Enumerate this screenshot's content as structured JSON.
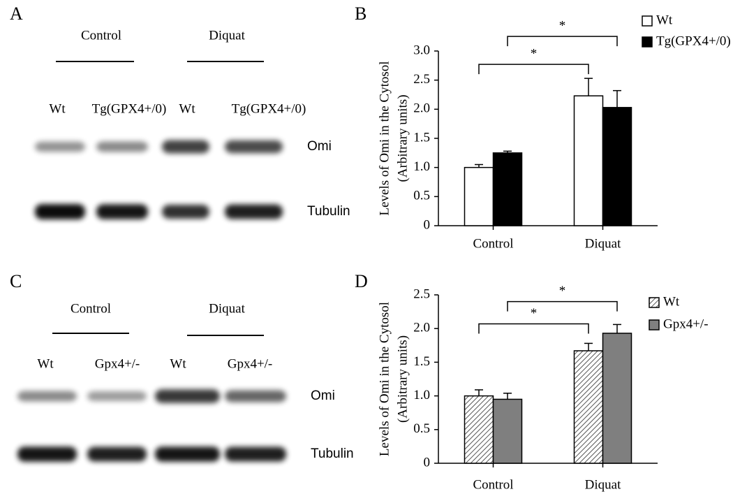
{
  "blots": [
    {
      "panel": "A",
      "groups": [
        "Control",
        "Diquat"
      ],
      "lanes": [
        "Wt",
        "Tg(GPX4+/0)",
        "Wt",
        "Tg(GPX4+/0)"
      ],
      "bands": [
        "Omi",
        "Tubulin"
      ]
    },
    {
      "panel": "C",
      "groups": [
        "Control",
        "Diquat"
      ],
      "lanes": [
        "Wt",
        "Gpx4+/-",
        "Wt",
        "Gpx4+/-"
      ],
      "bands": [
        "Omi",
        "Tubulin"
      ]
    }
  ],
  "chart_data": [
    {
      "type": "bar",
      "panel": "B",
      "y_label": [
        "Levels of Omi in the Cytosol",
        "(Arbitrary units)"
      ],
      "categories": [
        "Control",
        "Diquat"
      ],
      "series": [
        {
          "name": "Wt",
          "color": "#ffffff",
          "values": [
            1.0,
            2.23
          ],
          "errors": [
            0.05,
            0.3
          ]
        },
        {
          "name": "Tg(GPX4+/0)",
          "color": "#000000",
          "values": [
            1.25,
            2.03
          ],
          "errors": [
            0.03,
            0.29
          ]
        }
      ],
      "ylim": [
        0,
        3
      ],
      "yticks": [
        0,
        0.5,
        {
          "value": 1,
          "label": "1.0"
        },
        1.5,
        {
          "value": 2,
          "label": "2.0"
        },
        2.5,
        {
          "value": 3,
          "label": "3.0"
        }
      ],
      "significance": [
        {
          "label": "*",
          "series": 0,
          "level": 2.77
        },
        {
          "label": "*",
          "series": 1,
          "level": 3.25
        }
      ]
    },
    {
      "type": "bar",
      "panel": "D",
      "y_label": [
        "Levels of Omi in the Cytosol",
        "(Arbitrary units)"
      ],
      "categories": [
        "Control",
        "Diquat"
      ],
      "series": [
        {
          "name": "Wt",
          "color": "#ffffff",
          "hatch": true,
          "values": [
            1.0,
            1.67
          ],
          "errors": [
            0.09,
            0.11
          ]
        },
        {
          "name": "Gpx4+/-",
          "color": "#7f7f7f",
          "values": [
            0.95,
            1.93
          ],
          "errors": [
            0.09,
            0.13
          ]
        }
      ],
      "ylim": [
        0,
        2.5
      ],
      "yticks": [
        0,
        0.5,
        {
          "value": 1,
          "label": "1.0"
        },
        1.5,
        {
          "value": 2,
          "label": "2.0"
        },
        2.5
      ],
      "significance": [
        {
          "label": "*",
          "series": 0,
          "level": 2.07
        },
        {
          "label": "*",
          "series": 1,
          "level": 2.4
        }
      ]
    }
  ]
}
